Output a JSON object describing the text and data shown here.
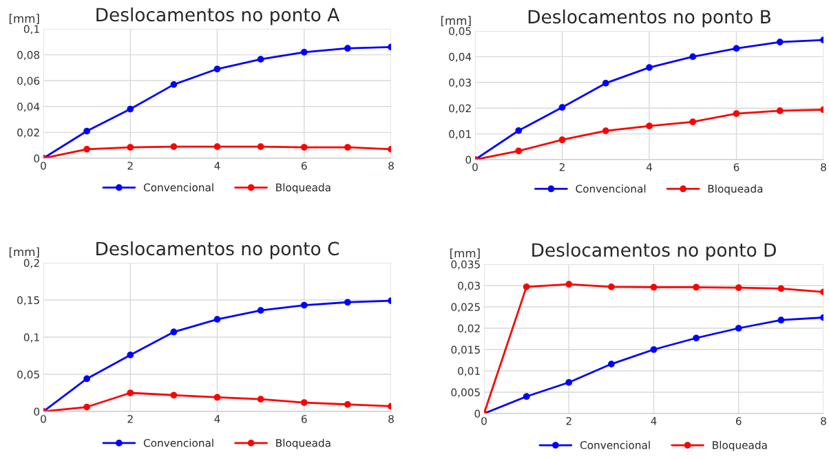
{
  "chart_data": [
    {
      "type": "line",
      "title": "Deslocamentos no ponto A",
      "ylabel": "[mm]",
      "x": [
        0,
        1,
        2,
        3,
        4,
        5,
        6,
        7,
        8
      ],
      "xlim": [
        0,
        8
      ],
      "xticks": [
        0,
        2,
        4,
        6,
        8
      ],
      "ylim": [
        0,
        0.1
      ],
      "yticks": [
        0,
        {
          "value": 0.02,
          "label": "0,02"
        },
        {
          "value": 0.04,
          "label": "0,04"
        },
        {
          "value": 0.06,
          "label": "0,06"
        },
        {
          "value": 0.08,
          "label": "0,08"
        },
        {
          "value": 0.1,
          "label": "0,1"
        }
      ],
      "grid": true,
      "legend": "bottom",
      "marker": "circle",
      "line_style": "solid",
      "series": [
        {
          "name": "Convencional",
          "color": "#0000ff",
          "values": [
            0,
            0.021,
            0.038,
            0.057,
            0.069,
            0.0765,
            0.082,
            0.085,
            0.086
          ]
        },
        {
          "name": "Bloqueada",
          "color": "#ff0000",
          "values": [
            0,
            0.007,
            0.0085,
            0.009,
            0.009,
            0.009,
            0.0085,
            0.0085,
            0.007
          ]
        }
      ]
    },
    {
      "type": "line",
      "title": "Deslocamentos no ponto B",
      "ylabel": "[mm]",
      "x": [
        0,
        1,
        2,
        3,
        4,
        5,
        6,
        7,
        8
      ],
      "xlim": [
        0,
        8
      ],
      "xticks": [
        0,
        2,
        4,
        6,
        8
      ],
      "ylim": [
        0,
        0.05
      ],
      "yticks": [
        0,
        {
          "value": 0.01,
          "label": "0,01"
        },
        {
          "value": 0.02,
          "label": "0,02"
        },
        {
          "value": 0.03,
          "label": "0,03"
        },
        {
          "value": 0.04,
          "label": "0,04"
        },
        {
          "value": 0.05,
          "label": "0,05"
        }
      ],
      "grid": true,
      "legend": "bottom",
      "marker": "circle",
      "line_style": "solid",
      "series": [
        {
          "name": "Convencional",
          "color": "#0000ff",
          "values": [
            0,
            0.0113,
            0.0203,
            0.0297,
            0.0358,
            0.04,
            0.0432,
            0.0457,
            0.0465
          ]
        },
        {
          "name": "Bloqueada",
          "color": "#ff0000",
          "values": [
            0,
            0.0034,
            0.0077,
            0.0112,
            0.0131,
            0.0147,
            0.0179,
            0.019,
            0.0194
          ]
        }
      ]
    },
    {
      "type": "line",
      "title": "Deslocamentos no ponto C",
      "ylabel": "[mm]",
      "x": [
        0,
        1,
        2,
        3,
        4,
        5,
        6,
        7,
        8
      ],
      "xlim": [
        0,
        8
      ],
      "xticks": [
        0,
        2,
        4,
        6,
        8
      ],
      "ylim": [
        0,
        0.2
      ],
      "yticks": [
        0,
        {
          "value": 0.05,
          "label": "0,05"
        },
        {
          "value": 0.1,
          "label": "0,1"
        },
        {
          "value": 0.15,
          "label": "0,15"
        },
        {
          "value": 0.2,
          "label": "0,2"
        }
      ],
      "grid": true,
      "legend": "bottom",
      "marker": "circle",
      "line_style": "solid",
      "series": [
        {
          "name": "Convencional",
          "color": "#0000ff",
          "values": [
            0,
            0.044,
            0.076,
            0.107,
            0.124,
            0.136,
            0.143,
            0.147,
            0.149
          ]
        },
        {
          "name": "Bloqueada",
          "color": "#ff0000",
          "values": [
            0,
            0.006,
            0.025,
            0.022,
            0.019,
            0.0165,
            0.012,
            0.0095,
            0.007
          ]
        }
      ]
    },
    {
      "type": "line",
      "title": "Deslocamentos no ponto D",
      "ylabel": "[mm]",
      "x": [
        0,
        1,
        2,
        3,
        4,
        5,
        6,
        7,
        8
      ],
      "xlim": [
        0,
        8
      ],
      "xticks": [
        0,
        2,
        4,
        6,
        8
      ],
      "ylim": [
        0,
        0.035
      ],
      "yticks": [
        0,
        {
          "value": 0.005,
          "label": "0,005"
        },
        {
          "value": 0.01,
          "label": "0,01"
        },
        {
          "value": 0.015,
          "label": "0,015"
        },
        {
          "value": 0.02,
          "label": "0,02"
        },
        {
          "value": 0.025,
          "label": "0,025"
        },
        {
          "value": 0.03,
          "label": "0,03"
        },
        {
          "value": 0.035,
          "label": "0,035"
        }
      ],
      "grid": true,
      "legend": "bottom",
      "marker": "circle",
      "line_style": "solid",
      "series": [
        {
          "name": "Convencional",
          "color": "#0000ff",
          "values": [
            0,
            0.004,
            0.0073,
            0.0116,
            0.015,
            0.0177,
            0.02,
            0.0219,
            0.0225
          ]
        },
        {
          "name": "Bloqueada",
          "color": "#ff0000",
          "values": [
            0,
            0.0297,
            0.0303,
            0.0297,
            0.0296,
            0.0296,
            0.0295,
            0.0293,
            0.0285
          ]
        }
      ]
    }
  ]
}
